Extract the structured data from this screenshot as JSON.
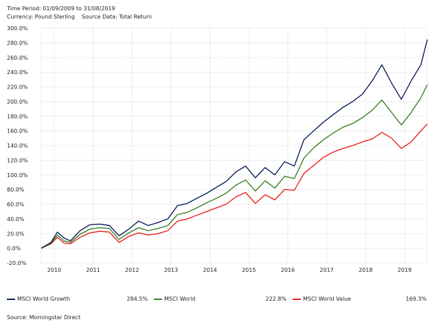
{
  "header": {
    "period": "Time Period: 01/09/2009 to 31/08/2019",
    "currency": "Currency: Pound Sterling",
    "source_data": "Source Data: Total Return"
  },
  "footer": {
    "source": "Source: Morningstar Direct"
  },
  "chart_data": {
    "type": "line",
    "title": "",
    "xlabel": "",
    "ylabel": "",
    "ylim": [
      -20,
      300
    ],
    "y_ticks": [
      "-20.0%",
      "0.0%",
      "20.0%",
      "40.0%",
      "60.0%",
      "80.0%",
      "100.0%",
      "120.0%",
      "140.0%",
      "160.0%",
      "180.0%",
      "200.0%",
      "220.0%",
      "240.0%",
      "260.0%",
      "280.0%",
      "300.0%"
    ],
    "x_ticks": [
      "2010",
      "2011",
      "2012",
      "2013",
      "2014",
      "2015",
      "2016",
      "2017",
      "2018",
      "2019"
    ],
    "x": [
      "2009-09",
      "2009-12",
      "2010-02",
      "2010-04",
      "2010-06",
      "2010-09",
      "2010-12",
      "2011-03",
      "2011-06",
      "2011-09",
      "2011-12",
      "2012-03",
      "2012-06",
      "2012-09",
      "2012-12",
      "2013-03",
      "2013-06",
      "2013-09",
      "2013-12",
      "2014-03",
      "2014-06",
      "2014-09",
      "2014-12",
      "2015-03",
      "2015-06",
      "2015-09",
      "2015-12",
      "2016-03",
      "2016-06",
      "2016-09",
      "2016-12",
      "2017-03",
      "2017-06",
      "2017-09",
      "2017-12",
      "2018-03",
      "2018-06",
      "2018-09",
      "2018-12",
      "2019-03",
      "2019-06",
      "2019-08"
    ],
    "grid": true,
    "legend_position": "bottom",
    "series": [
      {
        "name": "MSCI World Growth",
        "color": "#0a1f5c",
        "final_label": "284.5%",
        "values": [
          0,
          8,
          22,
          14,
          10,
          24,
          32,
          33,
          31,
          17,
          26,
          37,
          31,
          35,
          40,
          58,
          61,
          68,
          75,
          83,
          91,
          104,
          112,
          96,
          110,
          100,
          118,
          112,
          148,
          160,
          172,
          182,
          192,
          200,
          210,
          228,
          250,
          225,
          203,
          228,
          250,
          284.5
        ]
      },
      {
        "name": "MSCI World",
        "color": "#3a7d22",
        "final_label": "222.8%",
        "values": [
          0,
          7,
          18,
          10,
          8,
          19,
          26,
          28,
          27,
          12,
          21,
          28,
          24,
          27,
          31,
          46,
          49,
          55,
          62,
          68,
          75,
          86,
          93,
          78,
          92,
          82,
          98,
          95,
          123,
          137,
          148,
          157,
          165,
          170,
          178,
          188,
          202,
          185,
          168,
          185,
          205,
          222.8
        ]
      },
      {
        "name": "MSCI World Value",
        "color": "#e8211c",
        "final_label": "169.3%",
        "values": [
          0,
          6,
          15,
          7,
          6,
          15,
          21,
          23,
          22,
          8,
          16,
          21,
          18,
          20,
          24,
          37,
          40,
          45,
          50,
          55,
          60,
          70,
          76,
          61,
          73,
          66,
          80,
          79,
          102,
          113,
          124,
          131,
          136,
          140,
          145,
          149,
          158,
          150,
          136,
          145,
          160,
          169.3
        ]
      }
    ]
  }
}
